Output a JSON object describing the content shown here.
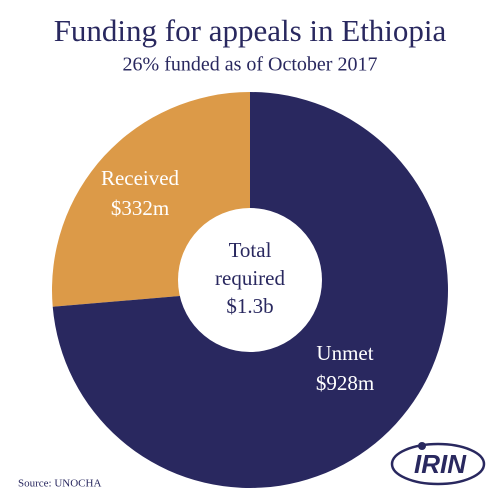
{
  "chart_data": {
    "type": "pie",
    "title": "Funding for appeals in Ethiopia",
    "subtitle": "26% funded as of October 2017",
    "categories": [
      "Received",
      "Unmet"
    ],
    "values": [
      332,
      928
    ],
    "value_labels": [
      "$332m",
      "$928m"
    ],
    "colors": [
      "#dc9a48",
      "#29285f"
    ],
    "center_text": [
      "Total",
      "required"
    ],
    "total": {
      "value": 1300,
      "label": "$1.3b"
    },
    "source": "Source: UNOCHA",
    "logo": "IRIN"
  }
}
